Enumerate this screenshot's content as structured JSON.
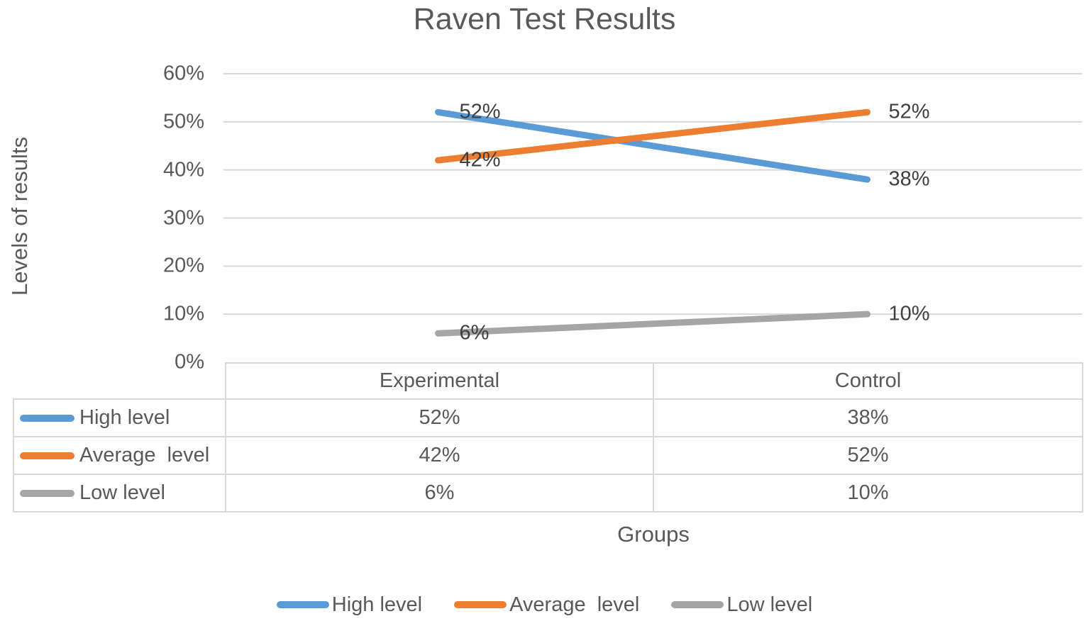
{
  "title": "Raven Test Results",
  "axes": {
    "y_title": "Levels of results",
    "x_title": "Groups"
  },
  "chart_data": {
    "type": "line",
    "title": "Raven Test Results",
    "xlabel": "Groups",
    "ylabel": "Levels of results",
    "categories": [
      "Experimental",
      "Control"
    ],
    "series": [
      {
        "name": "High level",
        "color": "#5B9BD5",
        "values": [
          52,
          38
        ],
        "labels": [
          "52%",
          "38%"
        ]
      },
      {
        "name": "Average  level",
        "color": "#ED7D31",
        "values": [
          42,
          52
        ],
        "labels": [
          "42%",
          "52%"
        ]
      },
      {
        "name": "Low level",
        "color": "#A5A5A5",
        "values": [
          6,
          10
        ],
        "labels": [
          "6%",
          "10%"
        ]
      }
    ],
    "ylim": [
      0,
      60
    ],
    "yticks": [
      {
        "value": 60,
        "label": "60%"
      },
      {
        "value": 50,
        "label": "50%"
      },
      {
        "value": 40,
        "label": "40%"
      },
      {
        "value": 30,
        "label": "30%"
      },
      {
        "value": 20,
        "label": "20%"
      },
      {
        "value": 10,
        "label": "10%"
      },
      {
        "value": 0,
        "label": "0%"
      }
    ],
    "grid": true,
    "legend_position": "bottom",
    "data_table_shown": true,
    "colors": {
      "gridline": "#D9D9D9",
      "text": "#595959",
      "data_label": "#404040"
    }
  },
  "table": {
    "column_headers": [
      "Experimental",
      "Control"
    ],
    "rows": [
      {
        "label": "High level",
        "values": [
          "52%",
          "38%"
        ]
      },
      {
        "label": "Average  level",
        "values": [
          "42%",
          "52%"
        ]
      },
      {
        "label": "Low level",
        "values": [
          "6%",
          "10%"
        ]
      }
    ]
  },
  "legend": {
    "items": [
      {
        "label": "High level"
      },
      {
        "label": "Average  level"
      },
      {
        "label": "Low level"
      }
    ]
  }
}
